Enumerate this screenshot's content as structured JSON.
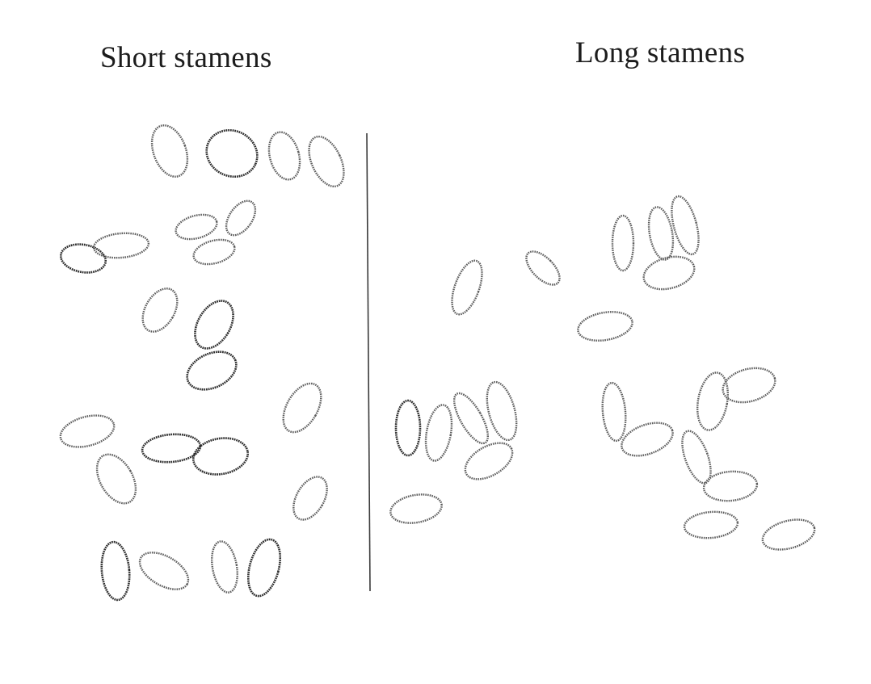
{
  "panels": {
    "left": {
      "label": "Short stamens"
    },
    "right": {
      "label": "Long stamens"
    }
  }
}
